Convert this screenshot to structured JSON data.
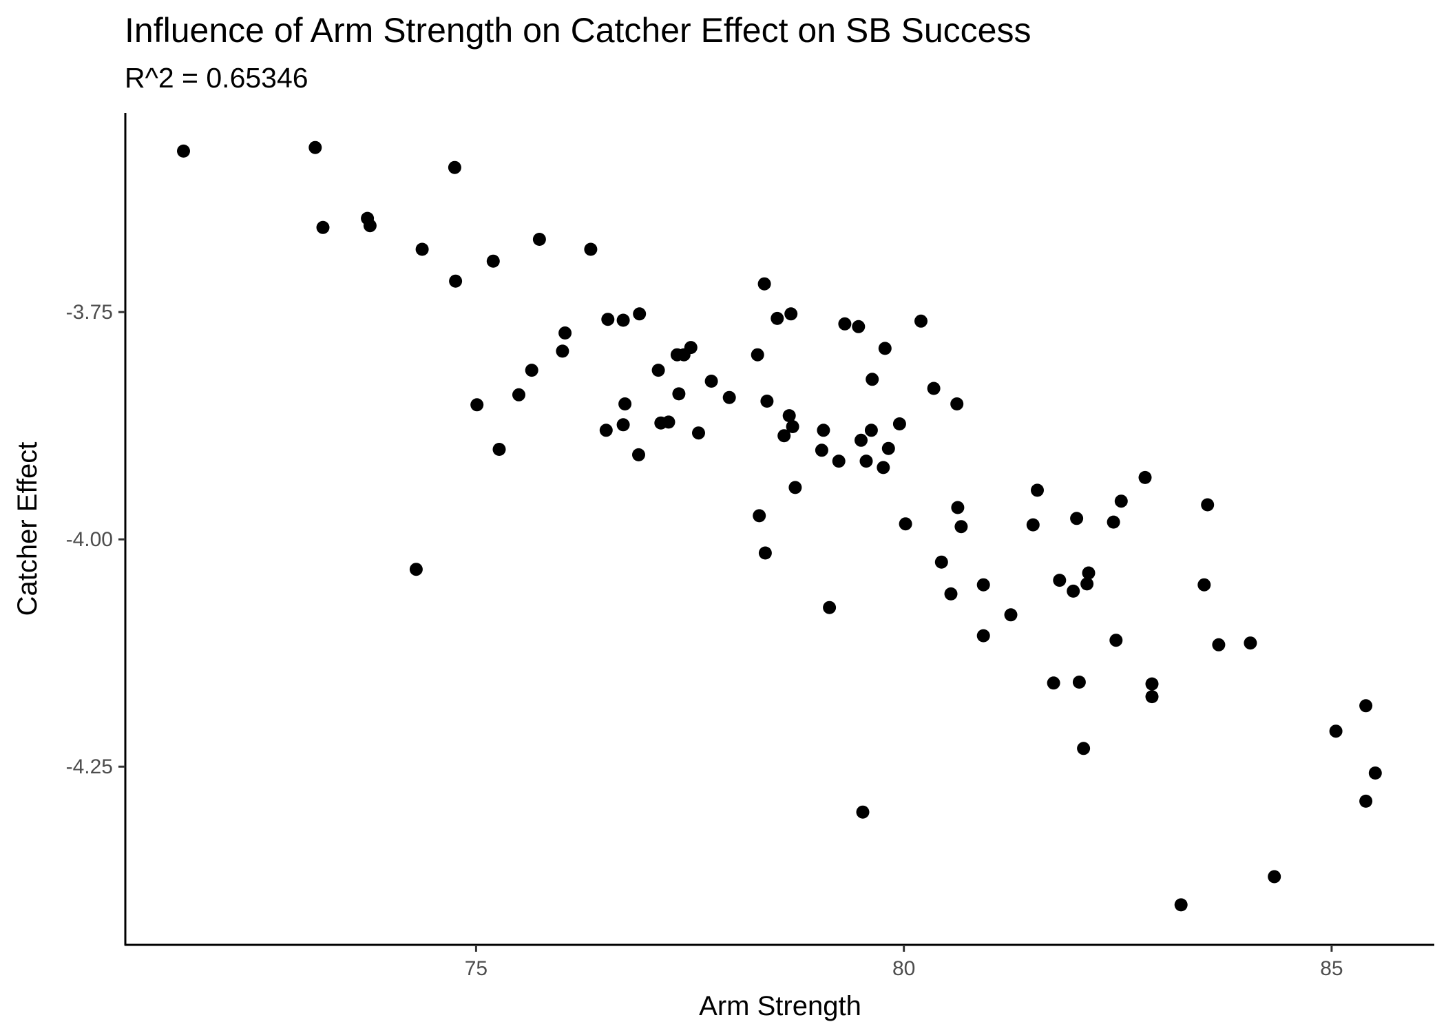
{
  "chart_data": {
    "type": "scatter",
    "title": "Influence of Arm Strength on Catcher Effect on SB Success",
    "subtitle": "R^2 = 0.65346",
    "xlabel": "Arm Strength",
    "ylabel": "Catcher Effect",
    "xlim": [
      70.9,
      86.2
    ],
    "ylim": [
      -4.446,
      -3.531
    ],
    "x_ticks": [
      75,
      80,
      85
    ],
    "x_tick_labels": [
      "75",
      "80",
      "85"
    ],
    "y_ticks": [
      -3.75,
      -4.0,
      -4.25
    ],
    "y_tick_labels": [
      "-3.75",
      "-4.00",
      "-4.25"
    ],
    "grid": false,
    "legend": "none",
    "point_color": "#000000",
    "points": [
      {
        "x": 71.58,
        "y": -3.573
      },
      {
        "x": 73.12,
        "y": -3.569
      },
      {
        "x": 73.21,
        "y": -3.657
      },
      {
        "x": 73.73,
        "y": -3.647
      },
      {
        "x": 73.76,
        "y": -3.655
      },
      {
        "x": 74.37,
        "y": -3.681
      },
      {
        "x": 74.75,
        "y": -3.591
      },
      {
        "x": 74.76,
        "y": -3.716
      },
      {
        "x": 75.2,
        "y": -3.694
      },
      {
        "x": 75.74,
        "y": -3.67
      },
      {
        "x": 76.34,
        "y": -3.681
      },
      {
        "x": 76.54,
        "y": -3.758
      },
      {
        "x": 76.72,
        "y": -3.759
      },
      {
        "x": 76.91,
        "y": -3.752
      },
      {
        "x": 76.04,
        "y": -3.773
      },
      {
        "x": 76.01,
        "y": -3.793
      },
      {
        "x": 75.65,
        "y": -3.814
      },
      {
        "x": 75.5,
        "y": -3.841
      },
      {
        "x": 75.01,
        "y": -3.852
      },
      {
        "x": 75.27,
        "y": -3.901
      },
      {
        "x": 74.3,
        "y": -4.033
      },
      {
        "x": 76.52,
        "y": -3.88
      },
      {
        "x": 76.72,
        "y": -3.874
      },
      {
        "x": 76.74,
        "y": -3.851
      },
      {
        "x": 76.9,
        "y": -3.907
      },
      {
        "x": 77.13,
        "y": -3.814
      },
      {
        "x": 77.16,
        "y": -3.872
      },
      {
        "x": 77.25,
        "y": -3.871
      },
      {
        "x": 77.35,
        "y": -3.797
      },
      {
        "x": 77.43,
        "y": -3.797
      },
      {
        "x": 77.51,
        "y": -3.789
      },
      {
        "x": 77.37,
        "y": -3.84
      },
      {
        "x": 77.6,
        "y": -3.883
      },
      {
        "x": 77.75,
        "y": -3.826
      },
      {
        "x": 77.96,
        "y": -3.844
      },
      {
        "x": 78.29,
        "y": -3.797
      },
      {
        "x": 78.37,
        "y": -3.719
      },
      {
        "x": 78.4,
        "y": -3.848
      },
      {
        "x": 78.52,
        "y": -3.757
      },
      {
        "x": 78.68,
        "y": -3.752
      },
      {
        "x": 78.66,
        "y": -3.864
      },
      {
        "x": 78.7,
        "y": -3.876
      },
      {
        "x": 78.6,
        "y": -3.886
      },
      {
        "x": 78.73,
        "y": -3.943
      },
      {
        "x": 78.31,
        "y": -3.974
      },
      {
        "x": 78.38,
        "y": -4.015
      },
      {
        "x": 79.06,
        "y": -3.88
      },
      {
        "x": 79.04,
        "y": -3.902
      },
      {
        "x": 79.13,
        "y": -4.075
      },
      {
        "x": 79.24,
        "y": -3.914
      },
      {
        "x": 79.31,
        "y": -3.763
      },
      {
        "x": 79.47,
        "y": -3.766
      },
      {
        "x": 79.5,
        "y": -3.891
      },
      {
        "x": 79.56,
        "y": -3.914
      },
      {
        "x": 79.62,
        "y": -3.88
      },
      {
        "x": 79.63,
        "y": -3.824
      },
      {
        "x": 79.78,
        "y": -3.79
      },
      {
        "x": 79.76,
        "y": -3.921
      },
      {
        "x": 79.82,
        "y": -3.9
      },
      {
        "x": 79.95,
        "y": -3.873
      },
      {
        "x": 79.52,
        "y": -4.3
      },
      {
        "x": 80.02,
        "y": -3.983
      },
      {
        "x": 80.2,
        "y": -3.76
      },
      {
        "x": 80.35,
        "y": -3.834
      },
      {
        "x": 80.44,
        "y": -4.025
      },
      {
        "x": 80.55,
        "y": -4.06
      },
      {
        "x": 80.62,
        "y": -3.851
      },
      {
        "x": 80.63,
        "y": -3.965
      },
      {
        "x": 80.67,
        "y": -3.986
      },
      {
        "x": 80.93,
        "y": -4.05
      },
      {
        "x": 80.93,
        "y": -4.106
      },
      {
        "x": 81.25,
        "y": -4.083
      },
      {
        "x": 81.51,
        "y": -3.984
      },
      {
        "x": 81.56,
        "y": -3.946
      },
      {
        "x": 81.75,
        "y": -4.158
      },
      {
        "x": 81.82,
        "y": -4.045
      },
      {
        "x": 81.98,
        "y": -4.057
      },
      {
        "x": 82.02,
        "y": -3.977
      },
      {
        "x": 82.05,
        "y": -4.157
      },
      {
        "x": 82.1,
        "y": -4.23
      },
      {
        "x": 82.14,
        "y": -4.049
      },
      {
        "x": 82.16,
        "y": -4.037
      },
      {
        "x": 82.45,
        "y": -3.981
      },
      {
        "x": 82.48,
        "y": -4.111
      },
      {
        "x": 82.54,
        "y": -3.958
      },
      {
        "x": 82.82,
        "y": -3.932
      },
      {
        "x": 82.9,
        "y": -4.159
      },
      {
        "x": 82.9,
        "y": -4.173
      },
      {
        "x": 83.24,
        "y": -4.402
      },
      {
        "x": 83.51,
        "y": -4.05
      },
      {
        "x": 83.55,
        "y": -3.962
      },
      {
        "x": 83.68,
        "y": -4.116
      },
      {
        "x": 84.05,
        "y": -4.114
      },
      {
        "x": 84.33,
        "y": -4.371
      },
      {
        "x": 85.05,
        "y": -4.211
      },
      {
        "x": 85.4,
        "y": -4.183
      },
      {
        "x": 85.4,
        "y": -4.288
      },
      {
        "x": 85.51,
        "y": -4.257
      }
    ]
  }
}
